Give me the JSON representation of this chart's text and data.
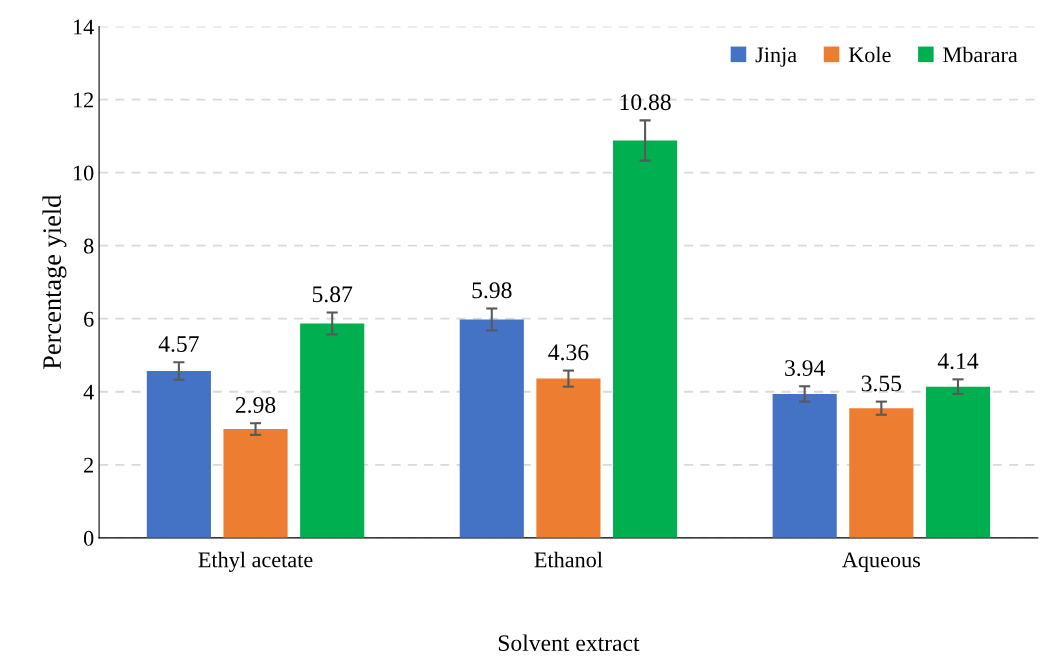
{
  "chart_data": {
    "type": "bar",
    "xlabel": "Solvent extract",
    "ylabel": "Percentage yield",
    "categories": [
      "Ethyl acetate",
      "Ethanol",
      "Aqueous"
    ],
    "series": [
      {
        "name": "Jinja",
        "color": "#4472c4",
        "values": [
          4.57,
          5.98,
          3.94
        ],
        "errors": [
          0.24,
          0.3,
          0.21
        ]
      },
      {
        "name": "Kole",
        "color": "#ed7d31",
        "values": [
          2.98,
          4.36,
          3.55
        ],
        "errors": [
          0.16,
          0.22,
          0.18
        ]
      },
      {
        "name": "Mbarara",
        "color": "#00b050",
        "values": [
          5.87,
          10.88,
          4.14
        ],
        "errors": [
          0.3,
          0.55,
          0.2
        ]
      }
    ],
    "ylim": [
      0,
      14
    ],
    "yticks": [
      0,
      2,
      4,
      6,
      8,
      10,
      12,
      14
    ],
    "grid": "y",
    "legend": "top right",
    "data_labels": true
  }
}
